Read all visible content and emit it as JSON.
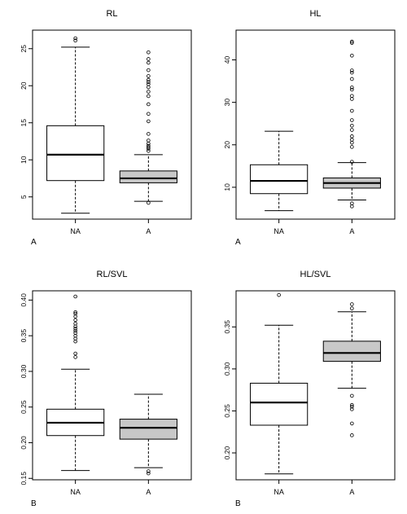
{
  "figure_labels": {
    "top": "A",
    "bottom": "B"
  },
  "colors": {
    "na_fill": "#ffffff",
    "a_fill": "#c8c8c8",
    "stroke": "#000000"
  },
  "chart_data": [
    {
      "type": "boxplot",
      "title": "RL",
      "panel_label": "A",
      "categories": [
        "NA",
        "A"
      ],
      "ylim": [
        2,
        27.5
      ],
      "yticks": [
        5,
        10,
        15,
        20,
        25
      ],
      "ytick_labels": [
        "5",
        "10",
        "15",
        "20",
        "25"
      ],
      "boxes": [
        {
          "category": "NA",
          "fill": "white",
          "whisker_low": 2.8,
          "q1": 7.2,
          "median": 10.7,
          "q3": 14.6,
          "whisker_high": 25.2,
          "outliers": [
            26.1,
            26.4
          ]
        },
        {
          "category": "A",
          "fill": "gray",
          "whisker_low": 4.4,
          "q1": 6.9,
          "median": 7.5,
          "q3": 8.5,
          "whisker_high": 10.7,
          "outliers": [
            4.2,
            11.2,
            11.5,
            11.7,
            11.9,
            12.2,
            12.6,
            13.5,
            15.2,
            16.2,
            17.5,
            18.6,
            19.2,
            19.8,
            20.2,
            20.5,
            20.8,
            21.3,
            22.1,
            23.1,
            23.6,
            24.5
          ]
        }
      ]
    },
    {
      "type": "boxplot",
      "title": "HL",
      "panel_label": "A",
      "categories": [
        "NA",
        "A"
      ],
      "ylim": [
        2.5,
        47
      ],
      "yticks": [
        10,
        20,
        30,
        40
      ],
      "ytick_labels": [
        "10",
        "20",
        "30",
        "40"
      ],
      "boxes": [
        {
          "category": "NA",
          "fill": "white",
          "whisker_low": 4.5,
          "q1": 8.5,
          "median": 11.5,
          "q3": 15.3,
          "whisker_high": 23.2,
          "outliers": []
        },
        {
          "category": "A",
          "fill": "gray",
          "whisker_low": 7.0,
          "q1": 9.8,
          "median": 11.0,
          "q3": 12.2,
          "whisker_high": 15.8,
          "outliers": [
            5.5,
            6.2,
            16.0,
            19.5,
            20.5,
            21.2,
            22.0,
            23.5,
            24.5,
            25.8,
            28.0,
            30.8,
            31.5,
            33.0,
            33.5,
            35.5,
            37.0,
            37.5,
            41.0,
            44.0,
            44.3
          ]
        }
      ]
    },
    {
      "type": "boxplot",
      "title": "RL/SVL",
      "panel_label": "B",
      "categories": [
        "NA",
        "A"
      ],
      "ylim": [
        0.148,
        0.413
      ],
      "yticks": [
        0.15,
        0.2,
        0.25,
        0.3,
        0.35,
        0.4
      ],
      "ytick_labels": [
        "0.15",
        "0.20",
        "0.25",
        "0.30",
        "0.35",
        "0.40"
      ],
      "boxes": [
        {
          "category": "NA",
          "fill": "white",
          "whisker_low": 0.161,
          "q1": 0.21,
          "median": 0.228,
          "q3": 0.247,
          "whisker_high": 0.303,
          "outliers": [
            0.32,
            0.325,
            0.342,
            0.346,
            0.35,
            0.354,
            0.357,
            0.36,
            0.363,
            0.367,
            0.372,
            0.377,
            0.381,
            0.383,
            0.405
          ]
        },
        {
          "category": "A",
          "fill": "gray",
          "whisker_low": 0.165,
          "q1": 0.205,
          "median": 0.221,
          "q3": 0.233,
          "whisker_high": 0.268,
          "outliers": [
            0.157,
            0.16
          ]
        }
      ]
    },
    {
      "type": "boxplot",
      "title": "HL/SVL",
      "panel_label": "B",
      "categories": [
        "NA",
        "A"
      ],
      "ylim": [
        0.168,
        0.393
      ],
      "yticks": [
        0.2,
        0.25,
        0.3,
        0.35
      ],
      "ytick_labels": [
        "0.20",
        "0.25",
        "0.30",
        "0.35"
      ],
      "boxes": [
        {
          "category": "NA",
          "fill": "white",
          "whisker_low": 0.175,
          "q1": 0.233,
          "median": 0.26,
          "q3": 0.283,
          "whisker_high": 0.352,
          "outliers": [
            0.388
          ]
        },
        {
          "category": "A",
          "fill": "gray",
          "whisker_low": 0.277,
          "q1": 0.309,
          "median": 0.319,
          "q3": 0.333,
          "whisker_high": 0.368,
          "outliers": [
            0.221,
            0.235,
            0.252,
            0.255,
            0.257,
            0.268,
            0.372,
            0.377
          ]
        }
      ]
    }
  ]
}
